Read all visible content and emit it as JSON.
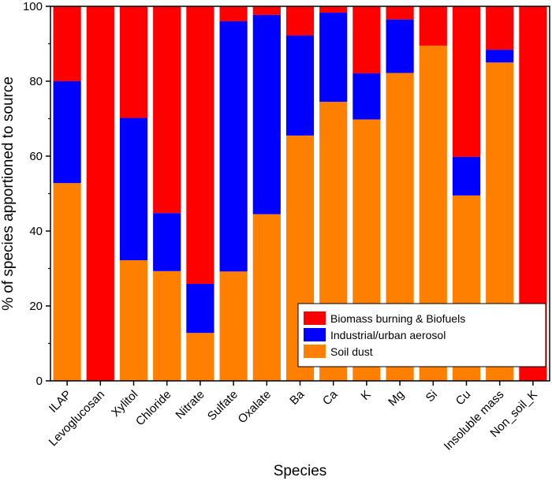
{
  "colors": {
    "soil": "#ff8000",
    "industrial": "#0000ff",
    "biomass": "#ff0000"
  },
  "chart_data": {
    "type": "bar",
    "stacked": true,
    "xlabel": "Species",
    "ylabel": "% of species apportioned to source",
    "ylim": [
      0,
      100
    ],
    "yticks": [
      0,
      20,
      40,
      60,
      80,
      100
    ],
    "grid": false,
    "legend_position": "bottom-right",
    "categories": [
      "ILAP",
      "Levoglucosan",
      "Xylitol",
      "Chloride",
      "Nitrate",
      "Sulfate",
      "Oxalate",
      "Ba",
      "Ca",
      "K",
      "Mg",
      "Si",
      "Cu",
      "Insoluble mass",
      "Non_soil_K"
    ],
    "series": [
      {
        "name": "Soil dust",
        "color_key": "soil",
        "values": [
          52.8,
          0,
          32.2,
          29.3,
          12.8,
          29.2,
          44.5,
          65.5,
          74.5,
          69.8,
          82.2,
          89.5,
          49.5,
          85.0,
          0
        ]
      },
      {
        "name": "Industrial/urban aerosol",
        "color_key": "industrial",
        "values": [
          27.2,
          0,
          38.0,
          15.5,
          13.1,
          66.8,
          53.2,
          26.7,
          23.8,
          12.3,
          14.3,
          0,
          10.3,
          3.4,
          0
        ]
      },
      {
        "name": "Biomass burning & Biofuels",
        "color_key": "biomass",
        "values": [
          20.0,
          100,
          29.8,
          55.2,
          74.1,
          4.0,
          2.3,
          7.8,
          1.7,
          17.9,
          3.5,
          10.5,
          40.2,
          11.6,
          100
        ]
      }
    ],
    "legend_order": [
      "Biomass burning & Biofuels",
      "Industrial/urban aerosol",
      "Soil dust"
    ]
  }
}
